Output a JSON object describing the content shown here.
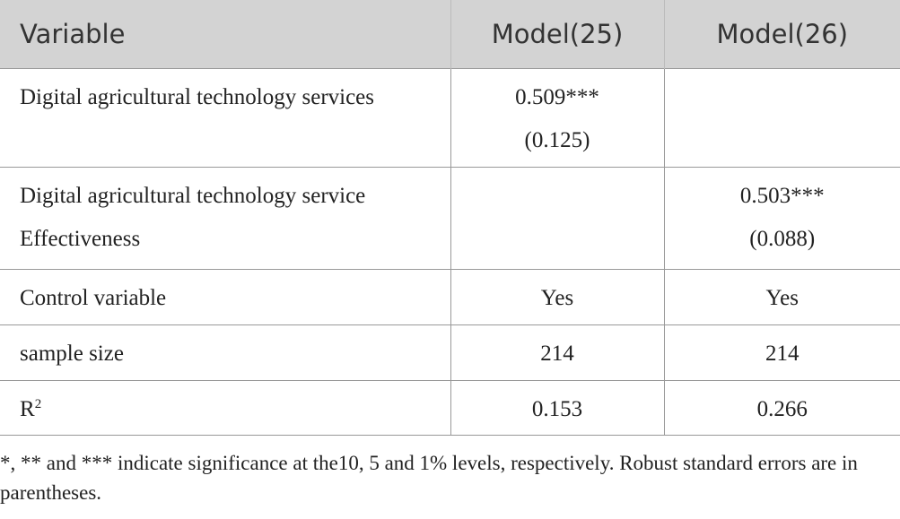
{
  "table": {
    "header": [
      "Variable",
      "Model(25)",
      "Model(26)"
    ],
    "rows": [
      [
        [
          "Digital agricultural technology services"
        ],
        [
          "0.509***",
          "(0.125)"
        ],
        []
      ],
      [
        [
          "Digital agricultural technology service",
          "Effectiveness"
        ],
        [],
        [
          "0.503***",
          "(0.088)"
        ]
      ],
      [
        [
          "Control variable"
        ],
        [
          "Yes"
        ],
        [
          "Yes"
        ]
      ],
      [
        [
          "sample size"
        ],
        [
          "214"
        ],
        [
          "214"
        ]
      ],
      [
        [
          {
            "base": "R",
            "sup": "2"
          }
        ],
        [
          "0.153"
        ],
        [
          "0.266"
        ]
      ]
    ]
  },
  "footnote": "*, ** and *** indicate significance at the10, 5 and 1% levels, respectively. Robust standard errors are in parentheses."
}
